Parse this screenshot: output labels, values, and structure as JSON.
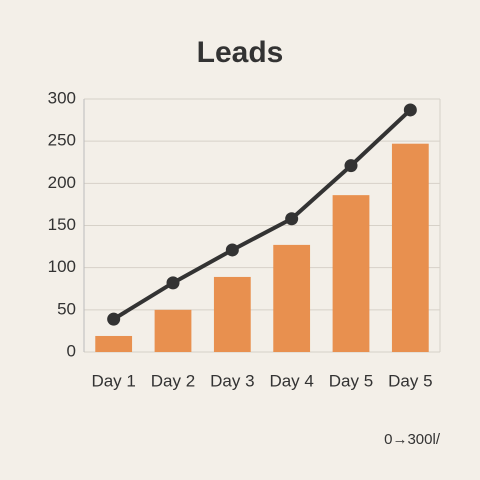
{
  "chart_data": {
    "type": "combo",
    "title": "Leads",
    "categories": [
      "Day 1",
      "Day 2",
      "Day 3",
      "Day 4",
      "Day 5",
      "Day 5"
    ],
    "series": [
      {
        "type": "bar",
        "color": "#e8904f",
        "values": [
          19,
          50,
          89,
          127,
          186,
          247
        ]
      },
      {
        "type": "line",
        "color": "#333333",
        "values": [
          39,
          82,
          121,
          158,
          221,
          287
        ]
      }
    ],
    "ylim": [
      0,
      300
    ],
    "yticks": [
      0,
      50,
      100,
      150,
      200,
      250,
      300
    ],
    "grid": true,
    "annotation": "0→300l/"
  }
}
